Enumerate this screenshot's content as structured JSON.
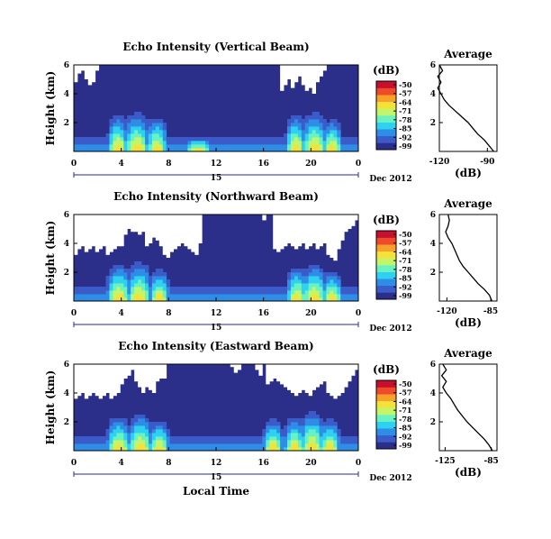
{
  "colorbar": {
    "unit_label": "(dB)",
    "ticks": [
      "-50",
      "-57",
      "-64",
      "-71",
      "-78",
      "-85",
      "-92",
      "-99"
    ],
    "colors": [
      "#2b2f8a",
      "#3a5bc8",
      "#2e8de6",
      "#2ed1f0",
      "#6af3c2",
      "#c2f56a",
      "#f3e23a",
      "#f7a02a",
      "#ee4b2a",
      "#c8102e"
    ]
  },
  "x_axis": {
    "tick_labels": [
      "0",
      "4",
      "8",
      "12",
      "16",
      "20",
      "0"
    ],
    "day_label": "15",
    "month_label": "Dec 2012",
    "xlabel": "Local Time"
  },
  "height_axis": {
    "label": "Height (km)",
    "tick_labels": [
      "6",
      "4",
      "2"
    ]
  },
  "avg_panel": {
    "title": "Average",
    "xlabel": "(dB)",
    "y_tick_labels": [
      "6",
      "4",
      "2"
    ]
  },
  "chart_data": [
    {
      "type": "heatmap",
      "title": "Echo Intensity (Vertical Beam)",
      "ylabel": "Height (km)",
      "ylim": [
        0,
        6
      ],
      "x_hours": [
        0,
        24
      ],
      "clim": [
        -99,
        -50
      ],
      "missing_top_km": [
        4.8,
        5.4,
        5.6,
        5.0,
        4.6,
        4.8,
        5.6,
        6.0,
        6.0,
        6.0,
        6.0,
        6.0,
        6.0,
        6.0,
        6.0,
        6.0,
        6.0,
        6.0,
        6.0,
        6.0,
        6.0,
        6.0,
        6.0,
        6.0,
        6.0,
        6.0,
        6.0,
        6.0,
        6.0,
        6.0,
        6.0,
        6.0,
        6.0,
        6.0,
        6.0,
        6.0,
        6.0,
        6.0,
        6.0,
        6.0,
        6.0,
        6.0,
        6.0,
        6.0,
        6.0,
        6.0,
        6.0,
        6.0,
        6.0,
        6.0,
        6.0,
        6.0,
        6.0,
        6.0,
        6.0,
        6.0,
        6.0,
        6.0,
        4.2,
        4.6,
        5.0,
        4.4,
        4.8,
        5.2,
        4.6,
        4.2,
        4.4,
        4.0,
        4.8,
        5.2,
        5.6,
        6.0,
        6.0,
        6.0,
        6.0,
        6.0,
        6.0,
        6.0,
        6.0,
        6.0
      ],
      "plumes": [
        {
          "hour": 3.7,
          "top_km": 3.0,
          "width_h": 1.0
        },
        {
          "hour": 5.3,
          "top_km": 3.2,
          "width_h": 1.2
        },
        {
          "hour": 7.0,
          "top_km": 2.8,
          "width_h": 1.0
        },
        {
          "hour": 10.5,
          "top_km": 1.2,
          "width_h": 1.4
        },
        {
          "hour": 18.7,
          "top_km": 3.0,
          "width_h": 1.0
        },
        {
          "hour": 20.3,
          "top_km": 3.2,
          "width_h": 1.2
        },
        {
          "hour": 21.8,
          "top_km": 2.6,
          "width_h": 1.0
        }
      ],
      "average_profile": {
        "xlim": [
          -120,
          -84
        ],
        "x_ticks": [
          -120,
          -90
        ],
        "height_km": [
          0.0,
          0.4,
          0.8,
          1.2,
          1.6,
          2.0,
          2.4,
          2.8,
          3.2,
          3.6,
          4.0,
          4.4,
          4.8,
          5.2,
          5.6,
          6.0
        ],
        "db": [
          -86,
          -89,
          -92,
          -96,
          -99,
          -102,
          -106,
          -110,
          -114,
          -117,
          -119,
          -121,
          -119,
          -121,
          -118,
          -120
        ]
      }
    },
    {
      "type": "heatmap",
      "title": "Echo Intensity (Northward Beam)",
      "ylabel": "Height (km)",
      "ylim": [
        0,
        6
      ],
      "x_hours": [
        0,
        24
      ],
      "clim": [
        -99,
        -50
      ],
      "missing_top_km": [
        3.2,
        3.6,
        3.8,
        3.4,
        3.6,
        3.8,
        3.4,
        3.6,
        3.8,
        3.2,
        3.4,
        3.6,
        3.8,
        3.8,
        4.6,
        5.0,
        4.8,
        4.8,
        4.6,
        4.8,
        3.8,
        4.0,
        4.4,
        4.2,
        3.8,
        3.2,
        3.0,
        3.4,
        3.6,
        3.8,
        4.0,
        3.8,
        3.6,
        3.4,
        3.2,
        4.0,
        6.0,
        6.0,
        6.0,
        6.0,
        6.0,
        6.0,
        6.0,
        6.0,
        6.0,
        6.0,
        6.0,
        6.0,
        6.0,
        6.0,
        6.0,
        6.0,
        6.0,
        5.6,
        6.0,
        6.0,
        3.6,
        3.4,
        3.6,
        3.8,
        4.0,
        3.8,
        3.6,
        3.8,
        4.0,
        3.6,
        3.8,
        4.0,
        3.6,
        3.8,
        4.0,
        3.2,
        3.0,
        2.8,
        3.6,
        4.2,
        4.8,
        5.0,
        5.2,
        5.6
      ],
      "plumes": [
        {
          "hour": 3.8,
          "top_km": 3.0,
          "width_h": 1.2
        },
        {
          "hour": 5.5,
          "top_km": 3.2,
          "width_h": 1.2
        },
        {
          "hour": 7.2,
          "top_km": 2.6,
          "width_h": 1.0
        },
        {
          "hour": 18.8,
          "top_km": 2.8,
          "width_h": 1.0
        },
        {
          "hour": 20.3,
          "top_km": 3.0,
          "width_h": 1.2
        },
        {
          "hour": 21.8,
          "top_km": 2.4,
          "width_h": 1.0
        }
      ],
      "average_profile": {
        "xlim": [
          -126,
          -80
        ],
        "x_ticks": [
          -120,
          -85
        ],
        "height_km": [
          0.0,
          0.4,
          0.8,
          1.2,
          1.6,
          2.0,
          2.4,
          2.8,
          3.2,
          3.6,
          4.0,
          4.4,
          4.8,
          5.2,
          5.6,
          6.0
        ],
        "db": [
          -84,
          -86,
          -90,
          -95,
          -99,
          -103,
          -107,
          -110,
          -112,
          -114,
          -116,
          -119,
          -121,
          -119,
          -118,
          -119
        ]
      }
    },
    {
      "type": "heatmap",
      "title": "Echo Intensity (Eastward Beam)",
      "ylabel": "Height (km)",
      "ylim": [
        0,
        6
      ],
      "x_hours": [
        0,
        24
      ],
      "clim": [
        -99,
        -50
      ],
      "missing_top_km": [
        3.6,
        3.8,
        4.0,
        3.6,
        3.8,
        4.0,
        3.8,
        3.6,
        3.8,
        4.0,
        3.6,
        3.8,
        4.0,
        4.6,
        5.0,
        5.2,
        5.6,
        4.8,
        4.4,
        4.0,
        4.4,
        4.2,
        4.0,
        4.8,
        5.0,
        5.0,
        6.0,
        6.0,
        6.0,
        6.0,
        6.0,
        6.0,
        6.0,
        6.0,
        6.0,
        6.0,
        6.0,
        6.0,
        6.0,
        6.0,
        6.0,
        6.0,
        6.0,
        6.0,
        5.8,
        5.4,
        5.6,
        6.0,
        6.0,
        6.0,
        6.0,
        5.6,
        5.2,
        6.0,
        4.6,
        4.8,
        5.0,
        4.8,
        4.6,
        4.4,
        4.2,
        4.0,
        3.8,
        4.0,
        4.2,
        4.0,
        3.8,
        4.2,
        4.4,
        4.6,
        4.8,
        4.0,
        3.8,
        3.6,
        3.8,
        4.0,
        4.4,
        4.8,
        5.2,
        5.6
      ],
      "plumes": [
        {
          "hour": 3.8,
          "top_km": 2.8,
          "width_h": 1.2
        },
        {
          "hour": 5.6,
          "top_km": 3.0,
          "width_h": 1.2
        },
        {
          "hour": 7.2,
          "top_km": 2.4,
          "width_h": 1.0
        },
        {
          "hour": 16.8,
          "top_km": 2.6,
          "width_h": 1.0
        },
        {
          "hour": 18.6,
          "top_km": 2.8,
          "width_h": 1.0
        },
        {
          "hour": 20.1,
          "top_km": 3.2,
          "width_h": 1.2
        },
        {
          "hour": 21.6,
          "top_km": 2.6,
          "width_h": 1.0
        }
      ],
      "average_profile": {
        "xlim": [
          -130,
          -80
        ],
        "x_ticks": [
          -125,
          -85
        ],
        "height_km": [
          0.0,
          0.4,
          0.8,
          1.2,
          1.6,
          2.0,
          2.4,
          2.8,
          3.2,
          3.6,
          4.0,
          4.4,
          4.8,
          5.2,
          5.6,
          6.0
        ],
        "db": [
          -84,
          -87,
          -91,
          -96,
          -101,
          -106,
          -110,
          -114,
          -117,
          -120,
          -124,
          -127,
          -124,
          -128,
          -124,
          -127
        ]
      }
    }
  ]
}
